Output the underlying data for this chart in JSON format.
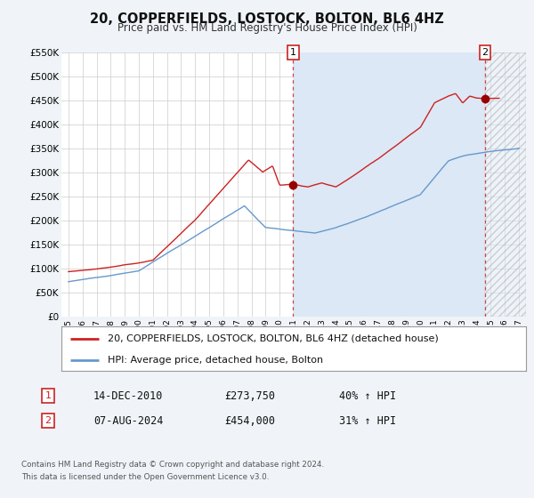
{
  "title": "20, COPPERFIELDS, LOSTOCK, BOLTON, BL6 4HZ",
  "subtitle": "Price paid vs. HM Land Registry's House Price Index (HPI)",
  "title_fontsize": 10.5,
  "subtitle_fontsize": 8.5,
  "bg_color": "#f0f4f8",
  "plot_bg_color": "#ffffff",
  "highlight_bg_color": "#dce8f5",
  "grid_color": "#cccccc",
  "ylim": [
    0,
    550000
  ],
  "yticks": [
    0,
    50000,
    100000,
    150000,
    200000,
    250000,
    300000,
    350000,
    400000,
    450000,
    500000,
    550000
  ],
  "ytick_labels": [
    "£0",
    "£50K",
    "£100K",
    "£150K",
    "£200K",
    "£250K",
    "£300K",
    "£350K",
    "£400K",
    "£450K",
    "£500K",
    "£550K"
  ],
  "xlim_start": 1994.5,
  "xlim_end": 2027.5,
  "xticks": [
    1995,
    1996,
    1997,
    1998,
    1999,
    2000,
    2001,
    2002,
    2003,
    2004,
    2005,
    2006,
    2007,
    2008,
    2009,
    2010,
    2011,
    2012,
    2013,
    2014,
    2015,
    2016,
    2017,
    2018,
    2019,
    2020,
    2021,
    2022,
    2023,
    2024,
    2025,
    2026,
    2027
  ],
  "red_line_color": "#cc2222",
  "blue_line_color": "#6699cc",
  "vline1_x": 2010.96,
  "vline2_x": 2024.6,
  "vline_color": "#cc4444",
  "marker1_y": 273750,
  "marker2_y": 454000,
  "annotation1_label": "1",
  "annotation2_label": "2",
  "legend_label_red": "20, COPPERFIELDS, LOSTOCK, BOLTON, BL6 4HZ (detached house)",
  "legend_label_blue": "HPI: Average price, detached house, Bolton",
  "table_row1": [
    "1",
    "14-DEC-2010",
    "£273,750",
    "40% ↑ HPI"
  ],
  "table_row2": [
    "2",
    "07-AUG-2024",
    "£454,000",
    "31% ↑ HPI"
  ],
  "footer_line1": "Contains HM Land Registry data © Crown copyright and database right 2024.",
  "footer_line2": "This data is licensed under the Open Government Licence v3.0."
}
